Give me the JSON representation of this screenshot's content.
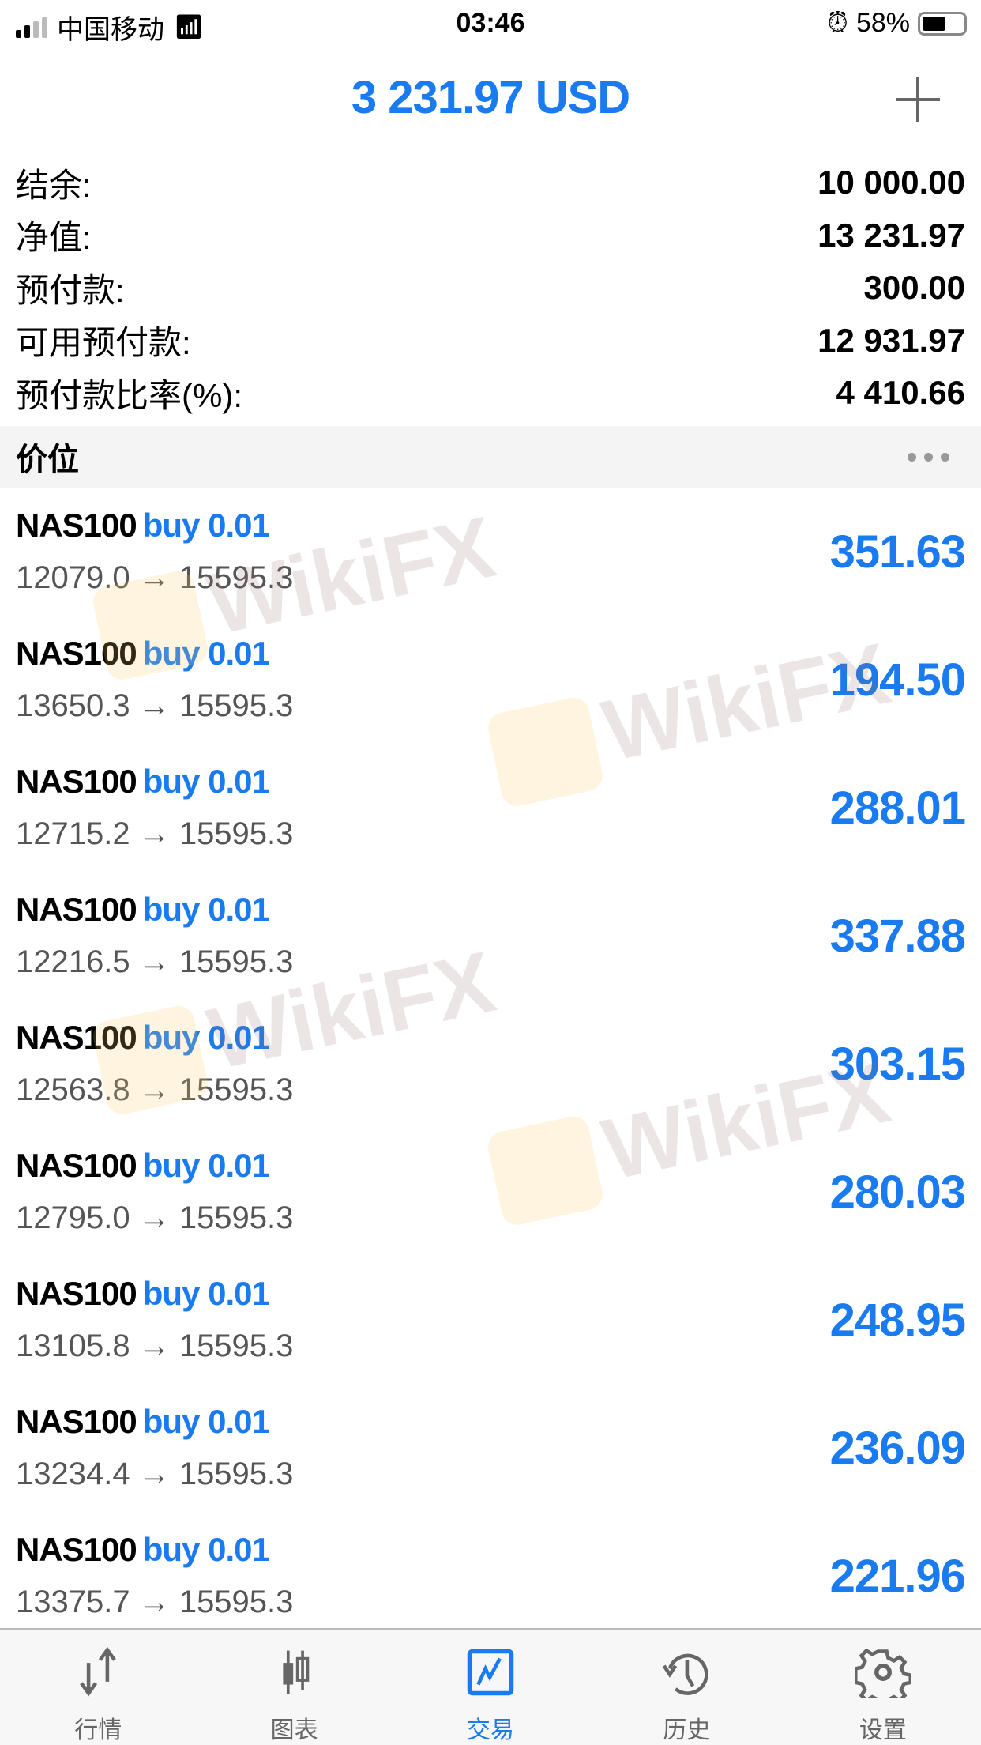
{
  "status_bar": {
    "carrier": "中国移动",
    "time": "03:46",
    "battery": "58%",
    "battery_level": 0.58
  },
  "header": {
    "title": "3 231.97 USD",
    "add_icon": "plus-icon"
  },
  "summary": [
    {
      "label": "结余:",
      "value": "10 000.00"
    },
    {
      "label": "净值:",
      "value": "13 231.97"
    },
    {
      "label": "预付款:",
      "value": "300.00"
    },
    {
      "label": "可用预付款:",
      "value": "12 931.97"
    },
    {
      "label": "预付款比率(%):",
      "value": "4 410.66"
    }
  ],
  "section": {
    "title": "价位",
    "menu_icon": "more-icon"
  },
  "positions": [
    {
      "symbol": "NAS100",
      "type": "buy 0.01",
      "prices": "12079.0 → 15595.3",
      "profit": "351.63"
    },
    {
      "symbol": "NAS100",
      "type": "buy 0.01",
      "prices": "13650.3 → 15595.3",
      "profit": "194.50"
    },
    {
      "symbol": "NAS100",
      "type": "buy 0.01",
      "prices": "12715.2 → 15595.3",
      "profit": "288.01"
    },
    {
      "symbol": "NAS100",
      "type": "buy 0.01",
      "prices": "12216.5 → 15595.3",
      "profit": "337.88"
    },
    {
      "symbol": "NAS100",
      "type": "buy 0.01",
      "prices": "12563.8 → 15595.3",
      "profit": "303.15"
    },
    {
      "symbol": "NAS100",
      "type": "buy 0.01",
      "prices": "12795.0 → 15595.3",
      "profit": "280.03"
    },
    {
      "symbol": "NAS100",
      "type": "buy 0.01",
      "prices": "13105.8 → 15595.3",
      "profit": "248.95"
    },
    {
      "symbol": "NAS100",
      "type": "buy 0.01",
      "prices": "13234.4 → 15595.3",
      "profit": "236.09"
    },
    {
      "symbol": "NAS100",
      "type": "buy 0.01",
      "prices": "13375.7 → 15595.3",
      "profit": "221.96"
    }
  ],
  "watermark": "WikiFX",
  "tabs": [
    {
      "label": "行情",
      "icon": "quotes-arrows-icon"
    },
    {
      "label": "图表",
      "icon": "candlestick-chart-icon"
    },
    {
      "label": "交易",
      "icon": "trade-icon",
      "active": true
    },
    {
      "label": "历史",
      "icon": "history-icon"
    },
    {
      "label": "设置",
      "icon": "settings-gear-icon"
    }
  ],
  "colors": {
    "accent": "#1a7bf0",
    "tab_inactive": "#666666",
    "section_bg": "#f4f4f4"
  }
}
